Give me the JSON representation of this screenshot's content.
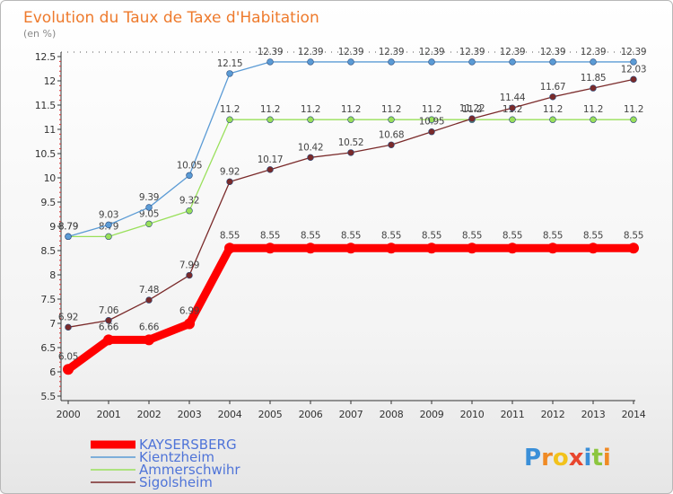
{
  "chart_data": {
    "type": "line",
    "title": "Evolution du Taux de Taxe d'Habitation",
    "subtitle": "(en %)",
    "xlabel": "",
    "ylabel": "",
    "categories": [
      "2000",
      "2001",
      "2002",
      "2003",
      "2004",
      "2005",
      "2006",
      "2007",
      "2008",
      "2009",
      "2010",
      "2011",
      "2012",
      "2013",
      "2014"
    ],
    "ylim": [
      5.5,
      12.5
    ],
    "yticks": [
      "5.5",
      "6",
      "6.5",
      "7",
      "7.5",
      "8",
      "8.5",
      "9",
      "9.5",
      "10",
      "10.5",
      "11",
      "11.5",
      "12",
      "12.5"
    ],
    "grid": false,
    "legend_position": "bottom-left",
    "series": [
      {
        "name": "KAYSERSBERG",
        "color": "#ff0000",
        "thick": true,
        "values": [
          6.05,
          6.66,
          6.66,
          6.99,
          8.55,
          8.55,
          8.55,
          8.55,
          8.55,
          8.55,
          8.55,
          8.55,
          8.55,
          8.55,
          8.55
        ],
        "labels": [
          "6.05",
          "6.66",
          "6.66",
          "6.99",
          "8.55",
          "8.55",
          "8.55",
          "8.55",
          "8.55",
          "8.55",
          "8.55",
          "8.55",
          "8.55",
          "8.55",
          "8.55"
        ]
      },
      {
        "name": "Kientzheim",
        "color": "#5b9bd5",
        "thick": false,
        "values": [
          8.79,
          9.03,
          9.39,
          10.05,
          12.15,
          12.39,
          12.39,
          12.39,
          12.39,
          12.39,
          12.39,
          12.39,
          12.39,
          12.39,
          12.39
        ],
        "labels": [
          "8.79",
          "9.03",
          "9.39",
          "10.05",
          "12.15",
          "12.39",
          "12.39",
          "12.39",
          "12.39",
          "12.39",
          "12.39",
          "12.39",
          "12.39",
          "12.39",
          "12.39"
        ]
      },
      {
        "name": "Ammerschwihr",
        "color": "#99e05a",
        "thick": false,
        "values": [
          8.79,
          8.79,
          9.05,
          9.32,
          11.2,
          11.2,
          11.2,
          11.2,
          11.2,
          11.2,
          11.2,
          11.2,
          11.2,
          11.2,
          11.2
        ],
        "labels": [
          "8.79",
          "8.79",
          "9.05",
          "9.32",
          "11.2",
          "11.2",
          "11.2",
          "11.2",
          "11.2",
          "11.2",
          "11.2",
          "11.2",
          "11.2",
          "11.2",
          "11.2"
        ]
      },
      {
        "name": "Sigolsheim",
        "color": "#7a2a2a",
        "thick": false,
        "values": [
          6.92,
          7.06,
          7.48,
          7.99,
          9.92,
          10.17,
          10.42,
          10.52,
          10.68,
          10.95,
          11.22,
          11.44,
          11.67,
          11.85,
          12.03
        ],
        "labels": [
          "6.92",
          "7.06",
          "7.48",
          "7.99",
          "9.92",
          "10.17",
          "10.42",
          "10.52",
          "10.68",
          "10.95",
          "11.22",
          "11.44",
          "11.67",
          "11.85",
          "12.03"
        ]
      }
    ]
  },
  "logo": {
    "text": "Proxiti"
  }
}
